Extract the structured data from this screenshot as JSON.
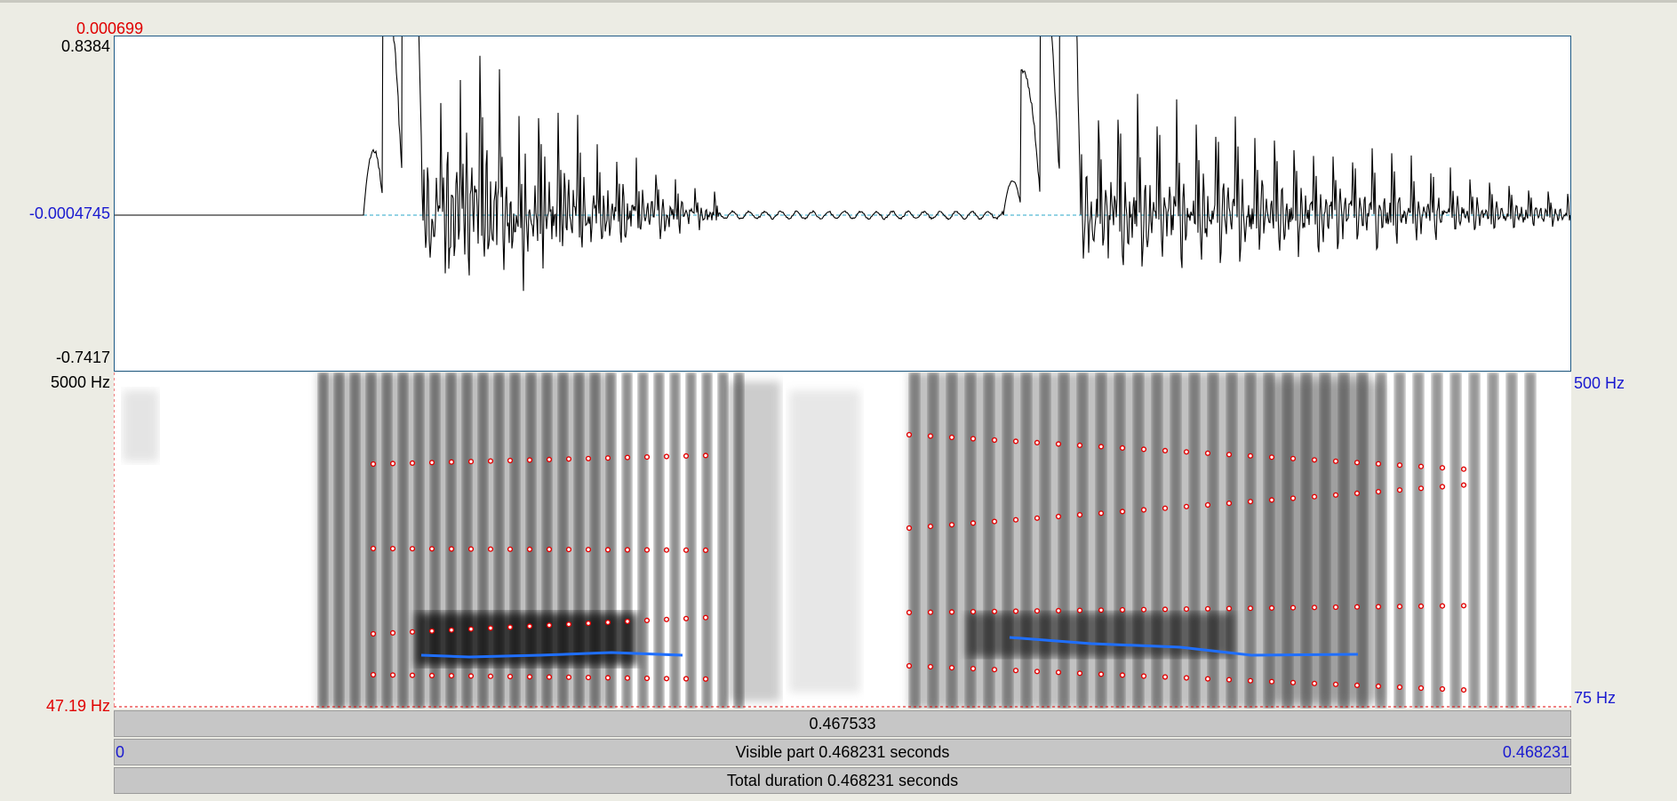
{
  "waveform": {
    "cursor_value": "0.000699",
    "y_max": "0.8384",
    "y_zero": "-0.0004745",
    "y_min": "-0.7417"
  },
  "spectrogram": {
    "freq_max": "5000 Hz",
    "freq_min": "47.19 Hz",
    "pitch_max": "500 Hz",
    "pitch_min": "75 Hz"
  },
  "timebar": {
    "cursor_time": "0.467533",
    "visible_start": "0",
    "visible_label": "Visible part 0.468231 seconds",
    "visible_end": "0.468231",
    "total_label": "Total duration 0.468231 seconds"
  },
  "colors": {
    "waveform": "#000000",
    "zero_line": "#2aa7c9",
    "formant_dots": "#e00000",
    "pitch_line": "#1f6fff"
  },
  "icons": {
    "waveform": "waveform-trace",
    "spectrogram": "spectrogram-image"
  }
}
